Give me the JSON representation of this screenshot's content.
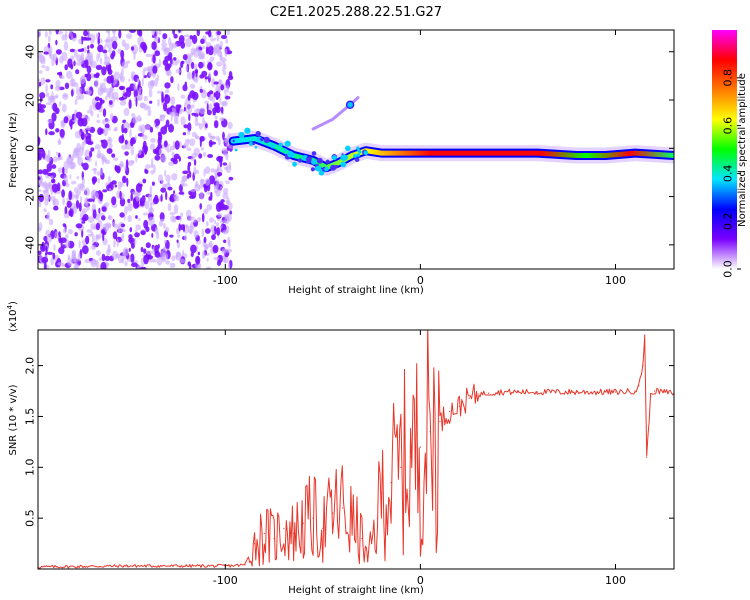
{
  "title": "C2E1.2025.288.22.51.G27",
  "colors": {
    "snr_line": "#e8362a",
    "colormap": [
      "#ffffff",
      "#7a00ff",
      "#0000ff",
      "#00e5ff",
      "#00ff00",
      "#ffff00",
      "#ff7a00",
      "#ff0000",
      "#ff00ff"
    ]
  },
  "chart_data": [
    {
      "type": "heatmap",
      "name": "spectrogram",
      "xlabel": "Height of straight line (km)",
      "ylabel": "Frequency (Hz)",
      "xlim": [
        -196,
        130
      ],
      "ylim": [
        -50,
        49
      ],
      "xticks": [
        -100,
        0,
        100
      ],
      "xtick_labels": [
        "-100",
        "0",
        "100"
      ],
      "yticks": [
        -40,
        -20,
        0,
        20,
        40
      ],
      "ytick_labels": [
        "-40",
        "-20",
        "0",
        "20",
        "40"
      ],
      "colorbar": {
        "label": "Normalized spectral amplitude",
        "range": [
          0,
          1
        ],
        "ticks": [
          0.0,
          0.2,
          0.4,
          0.6,
          0.8
        ],
        "tick_labels": [
          "0.0",
          "0.2",
          "0.4",
          "0.6",
          "0.8"
        ]
      },
      "features": [
        {
          "name": "noise region",
          "x_range": [
            -196,
            -97
          ],
          "y_range": [
            -50,
            49
          ],
          "amplitude": 0.15
        },
        {
          "name": "signal trace",
          "points": [
            [
              -96,
              3
            ],
            [
              -85,
              4
            ],
            [
              -75,
              1
            ],
            [
              -65,
              -3
            ],
            [
              -55,
              -5
            ],
            [
              -48,
              -8
            ],
            [
              -42,
              -6
            ],
            [
              -35,
              -3
            ],
            [
              -28,
              -1
            ],
            [
              -20,
              -2
            ],
            [
              -10,
              -2
            ],
            [
              0,
              -2
            ],
            [
              20,
              -2
            ],
            [
              40,
              -2
            ],
            [
              60,
              -2
            ],
            [
              80,
              -3
            ],
            [
              95,
              -3
            ],
            [
              110,
              -2
            ],
            [
              130,
              -3
            ]
          ]
        },
        {
          "name": "faint harmonic",
          "points": [
            [
              -55,
              8
            ],
            [
              -45,
              12
            ],
            [
              -36,
              18
            ],
            [
              -32,
              21
            ]
          ]
        }
      ]
    },
    {
      "type": "line",
      "name": "snr",
      "xlabel": "Height of straight line (km)",
      "ylabel": "SNR (10 * v/v)",
      "y_scale_label": "(x10",
      "y_scale_exp": "4",
      "xlim": [
        -196,
        130
      ],
      "ylim": [
        0,
        2.35
      ],
      "xticks": [
        -100,
        0,
        100
      ],
      "xtick_labels": [
        "-100",
        "0",
        "100"
      ],
      "yticks": [
        0.5,
        1.0,
        1.5,
        2.0
      ],
      "ytick_labels": [
        "0.5",
        "1.0",
        "1.5",
        "2.0"
      ],
      "series": [
        {
          "name": "SNR",
          "x": [
            -196,
            -150,
            -100,
            -90,
            -85,
            -80,
            -75,
            -70,
            -65,
            -60,
            -55,
            -50,
            -45,
            -40,
            -35,
            -30,
            -27,
            -25,
            -22,
            -20,
            -15,
            -10,
            -5,
            0,
            5,
            10,
            15,
            20,
            25,
            30,
            35,
            40,
            50,
            60,
            80,
            100,
            110,
            112,
            114,
            115,
            116,
            118,
            120,
            125,
            130
          ],
          "y": [
            0.02,
            0.03,
            0.03,
            0.04,
            0.25,
            0.35,
            0.3,
            0.4,
            0.35,
            0.45,
            0.5,
            0.4,
            0.55,
            0.6,
            0.45,
            0.3,
            0.08,
            0.25,
            0.5,
            0.75,
            0.85,
            1.0,
            1.1,
            1.2,
            1.35,
            1.45,
            1.55,
            1.6,
            1.68,
            1.72,
            1.73,
            1.74,
            1.74,
            1.74,
            1.74,
            1.74,
            1.75,
            1.8,
            2.0,
            2.3,
            1.1,
            1.7,
            1.75,
            1.74,
            1.73
          ]
        }
      ]
    }
  ]
}
